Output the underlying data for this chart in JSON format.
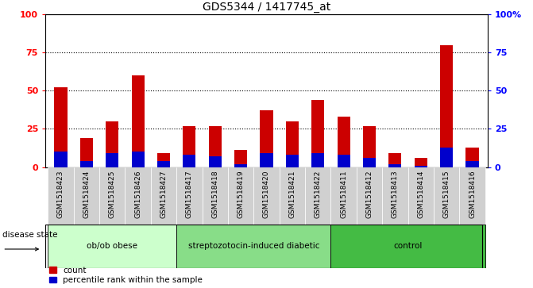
{
  "title": "GDS5344 / 1417745_at",
  "samples": [
    "GSM1518423",
    "GSM1518424",
    "GSM1518425",
    "GSM1518426",
    "GSM1518427",
    "GSM1518417",
    "GSM1518418",
    "GSM1518419",
    "GSM1518420",
    "GSM1518421",
    "GSM1518422",
    "GSM1518411",
    "GSM1518412",
    "GSM1518413",
    "GSM1518414",
    "GSM1518415",
    "GSM1518416"
  ],
  "count_values": [
    52,
    19,
    30,
    60,
    9,
    27,
    27,
    11,
    37,
    30,
    44,
    33,
    27,
    9,
    6,
    80,
    13
  ],
  "percentile_values": [
    10,
    4,
    9,
    10,
    4,
    8,
    7,
    2,
    9,
    8,
    9,
    8,
    6,
    2,
    1,
    13,
    4
  ],
  "groups": [
    {
      "label": "ob/ob obese",
      "start": 0,
      "end": 5,
      "color": "#ccffcc"
    },
    {
      "label": "streptozotocin-induced diabetic",
      "start": 5,
      "end": 11,
      "color": "#88dd88"
    },
    {
      "label": "control",
      "start": 11,
      "end": 17,
      "color": "#44bb44"
    }
  ],
  "ylim": [
    0,
    100
  ],
  "yticks": [
    0,
    25,
    50,
    75,
    100
  ],
  "bar_color_red": "#cc0000",
  "bar_color_blue": "#0000cc",
  "bar_width": 0.5,
  "disease_state_label": "disease state",
  "legend_count": "count",
  "legend_percentile": "percentile rank within the sample",
  "right_axis_ticks": [
    0,
    25,
    50,
    75,
    100
  ],
  "right_axis_labels": [
    "0",
    "25",
    "50",
    "75",
    "100%"
  ]
}
